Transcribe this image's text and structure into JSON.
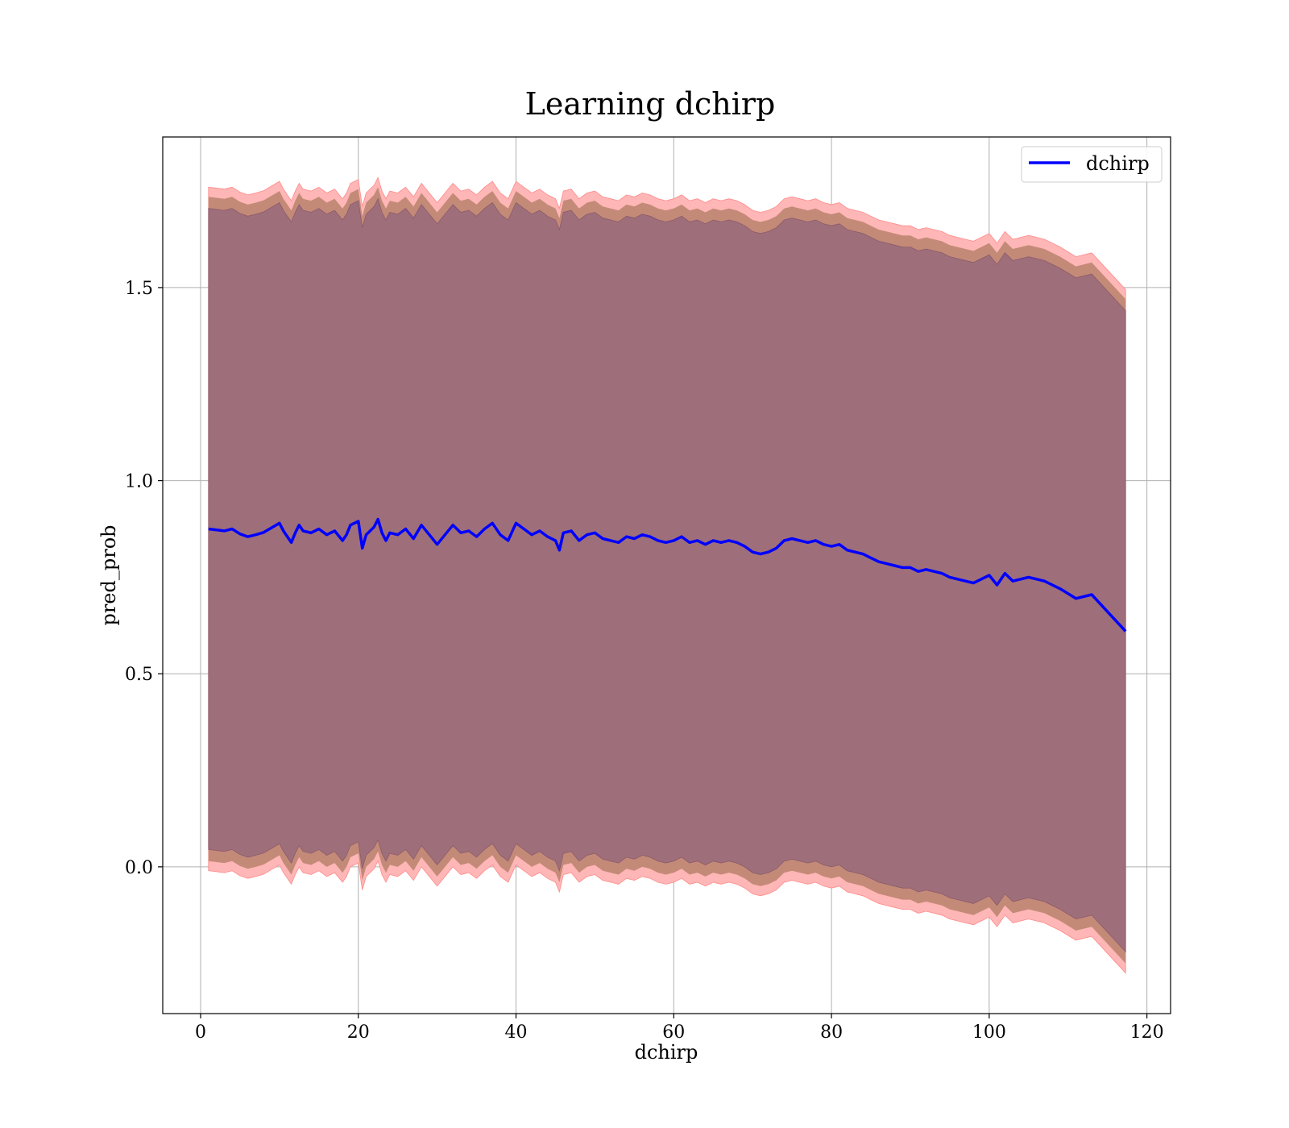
{
  "chart_data": {
    "type": "line",
    "title": "Learning dchirp",
    "xlabel": "dchirp",
    "ylabel": "pred_prob",
    "xlim": [
      -4.8,
      123.0
    ],
    "ylim": [
      -0.38,
      1.89
    ],
    "xticks": [
      0,
      20,
      40,
      60,
      80,
      100,
      120
    ],
    "yticks": [
      0.0,
      0.5,
      1.0,
      1.5
    ],
    "xtick_labels": [
      "0",
      "20",
      "40",
      "60",
      "80",
      "100",
      "120"
    ],
    "ytick_labels": [
      "0.0",
      "0.5",
      "1.0",
      "1.5"
    ],
    "grid": true,
    "legend_position": "top-right",
    "series": [
      {
        "name": "dchirp",
        "color": "#0000ff",
        "x": [
          1,
          3,
          4,
          5,
          6,
          7,
          8,
          9,
          10,
          10.5,
          11,
          11.5,
          12,
          12.5,
          13,
          14,
          15,
          16,
          17,
          18,
          18.5,
          19,
          20,
          20.5,
          21,
          22,
          22.5,
          23,
          23.5,
          24,
          25,
          26,
          27,
          28,
          29,
          30,
          31,
          32,
          33,
          34,
          35,
          36,
          37,
          38,
          39,
          40,
          41,
          42,
          43,
          44,
          45,
          45.5,
          46,
          47,
          48,
          49,
          50,
          51,
          52,
          53,
          54,
          55,
          56,
          57,
          58,
          59,
          60,
          61,
          62,
          63,
          64,
          65,
          66,
          67,
          68,
          69,
          70,
          71,
          72,
          73,
          74,
          75,
          76,
          77,
          78,
          79,
          80,
          81,
          82,
          83,
          84,
          85,
          86,
          87,
          88,
          89,
          90,
          91,
          92,
          93,
          94,
          95,
          96,
          97,
          98,
          99,
          100,
          101,
          102,
          103,
          104,
          105,
          107,
          109,
          111,
          113,
          117.3
        ],
        "values": [
          0.875,
          0.87,
          0.875,
          0.862,
          0.855,
          0.86,
          0.866,
          0.878,
          0.89,
          0.87,
          0.855,
          0.84,
          0.865,
          0.885,
          0.87,
          0.865,
          0.875,
          0.86,
          0.87,
          0.845,
          0.86,
          0.885,
          0.895,
          0.825,
          0.86,
          0.88,
          0.9,
          0.865,
          0.845,
          0.865,
          0.86,
          0.875,
          0.85,
          0.885,
          0.86,
          0.835,
          0.86,
          0.885,
          0.865,
          0.87,
          0.855,
          0.875,
          0.89,
          0.86,
          0.845,
          0.89,
          0.875,
          0.86,
          0.87,
          0.855,
          0.845,
          0.82,
          0.865,
          0.87,
          0.845,
          0.86,
          0.865,
          0.85,
          0.845,
          0.84,
          0.855,
          0.85,
          0.86,
          0.855,
          0.845,
          0.84,
          0.845,
          0.855,
          0.84,
          0.845,
          0.835,
          0.845,
          0.84,
          0.845,
          0.84,
          0.83,
          0.815,
          0.81,
          0.815,
          0.825,
          0.845,
          0.85,
          0.845,
          0.84,
          0.845,
          0.835,
          0.83,
          0.835,
          0.82,
          0.815,
          0.81,
          0.8,
          0.79,
          0.785,
          0.78,
          0.775,
          0.775,
          0.765,
          0.77,
          0.765,
          0.76,
          0.75,
          0.745,
          0.74,
          0.735,
          0.745,
          0.755,
          0.73,
          0.76,
          0.74,
          0.745,
          0.75,
          0.74,
          0.72,
          0.695,
          0.705,
          0.61
        ],
        "band_inner_half_width": 0.83,
        "band_mid_half_width": 0.86,
        "band_outer_half_width": 0.885
      }
    ],
    "band_colors": {
      "inner": "#9e6f7a",
      "mid": "#c48a78",
      "outer": "#ffb6b6"
    }
  }
}
